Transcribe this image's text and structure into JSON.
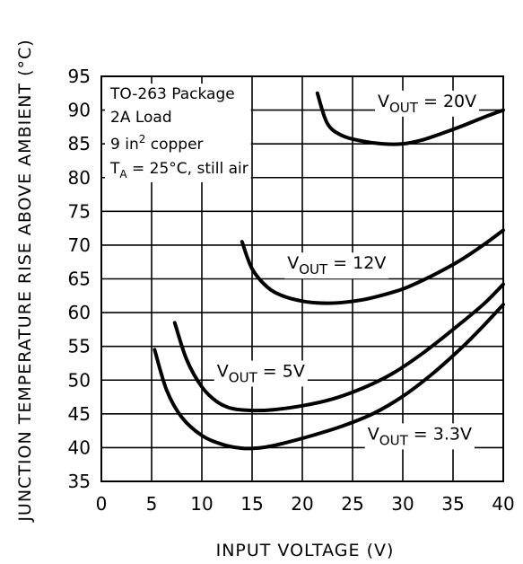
{
  "chart_data": {
    "type": "line",
    "xlabel": "INPUT VOLTAGE (V)",
    "ylabel": "JUNCTION TEMPERATURE RISE ABOVE AMBIENT (°C)",
    "xlim": [
      0,
      40
    ],
    "ylim": [
      35,
      95
    ],
    "x_ticks": [
      0,
      5,
      10,
      15,
      20,
      25,
      30,
      35,
      40
    ],
    "y_ticks": [
      35,
      40,
      45,
      50,
      55,
      60,
      65,
      70,
      75,
      80,
      85,
      90,
      95
    ],
    "grid": true,
    "conditions": {
      "line1": "TO-263 Package",
      "line2": "2A Load",
      "line3_prefix": "9 in",
      "line3_sup": "2",
      "line3_suffix": " copper",
      "line4_prefix": "T",
      "line4_sub": "A",
      "line4_suffix": " = 25°C, still air"
    },
    "series": [
      {
        "label_prefix": "V",
        "label_sub": "OUT",
        "label_suffix": " = 20V",
        "label_at": [
          27.5,
          90.5
        ],
        "x": [
          21.5,
          22.5,
          24,
          26,
          28,
          30,
          32,
          34,
          36,
          38,
          40
        ],
        "y": [
          92.5,
          88,
          86.2,
          85.4,
          85.0,
          85.0,
          85.6,
          86.6,
          87.7,
          88.9,
          90.0
        ]
      },
      {
        "label_prefix": "V",
        "label_sub": "OUT",
        "label_suffix": " = 12V",
        "label_at": [
          18.5,
          66.5
        ],
        "x": [
          14,
          15,
          16.5,
          18,
          20,
          22,
          24,
          26,
          28,
          30,
          32,
          34,
          36,
          38,
          40
        ],
        "y": [
          70.5,
          66.5,
          63.8,
          62.5,
          61.7,
          61.4,
          61.5,
          61.9,
          62.6,
          63.5,
          64.8,
          66.3,
          68.0,
          70.0,
          72.2
        ]
      },
      {
        "label_prefix": "V",
        "label_sub": "OUT",
        "label_suffix": " = 5V",
        "label_at": [
          11.5,
          50.5
        ],
        "x": [
          7.3,
          8.5,
          10,
          11.5,
          13,
          15,
          17,
          20,
          23,
          26,
          29,
          32,
          35,
          38,
          40
        ],
        "y": [
          58.5,
          53,
          49,
          46.8,
          45.8,
          45.5,
          45.6,
          46.2,
          47.2,
          48.8,
          51.0,
          54.0,
          57.5,
          61.2,
          64.2
        ]
      },
      {
        "label_prefix": "V",
        "label_sub": "OUT",
        "label_suffix": " = 3.3V",
        "label_at": [
          26.5,
          41.2
        ],
        "x": [
          5.3,
          6.5,
          8,
          10,
          12,
          14,
          16,
          18,
          21,
          24,
          27,
          30,
          33,
          36,
          38,
          40
        ],
        "y": [
          54.5,
          48.5,
          44.5,
          41.8,
          40.5,
          39.9,
          40.0,
          40.6,
          41.8,
          43.2,
          45.0,
          47.6,
          51.0,
          55.0,
          58.0,
          61.2
        ]
      }
    ]
  }
}
